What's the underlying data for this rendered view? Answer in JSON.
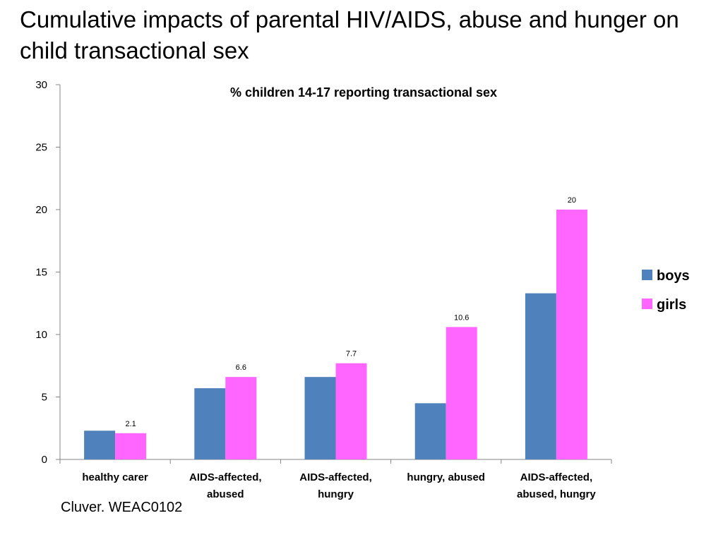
{
  "slide": {
    "title": "Cumulative impacts of parental HIV/AIDS, abuse and hunger on child transactional sex",
    "source": "Cluver. WEAC0102"
  },
  "chart_data": {
    "type": "bar",
    "title": "% children 14-17 reporting transactional sex",
    "xlabel": "",
    "ylabel": "",
    "ylim": [
      0,
      30
    ],
    "yticks": [
      0,
      5,
      10,
      15,
      20,
      25,
      30
    ],
    "grid": false,
    "legend_position": "right",
    "categories": [
      [
        "healthy carer"
      ],
      [
        "AIDS-affected,",
        "abused"
      ],
      [
        "AIDS-affected,",
        "hungry"
      ],
      [
        "hungry, abused"
      ],
      [
        "AIDS-affected,",
        "abused, hungry"
      ]
    ],
    "series": [
      {
        "name": "boys",
        "color": "#4f81bd",
        "values": [
          2.3,
          5.7,
          6.6,
          4.5,
          13.3
        ],
        "labels": [
          null,
          null,
          null,
          null,
          null
        ]
      },
      {
        "name": "girls",
        "color": "#ff66ff",
        "values": [
          2.1,
          6.6,
          7.7,
          10.6,
          20
        ],
        "labels": [
          "2.1",
          "6.6",
          "7.7",
          "10.6",
          "20"
        ]
      }
    ]
  }
}
